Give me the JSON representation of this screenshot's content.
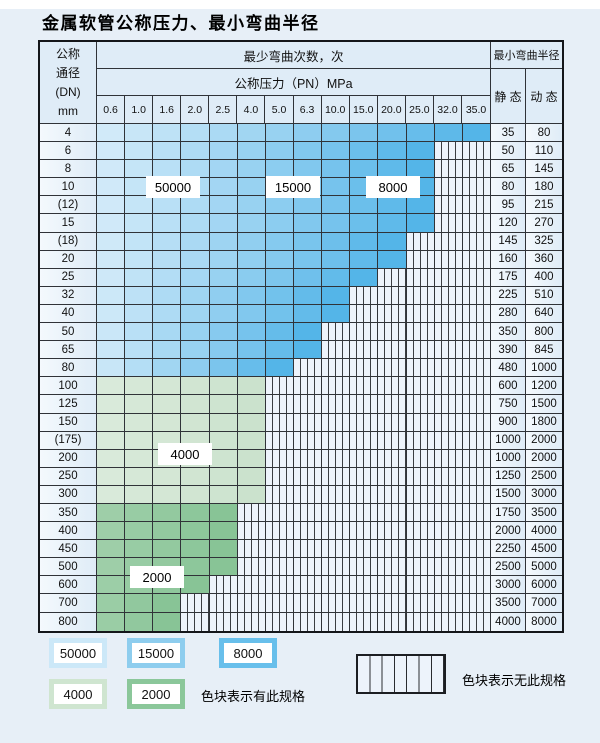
{
  "page": {
    "title": "金属软管公称压力、最小弯曲半径"
  },
  "table": {
    "header": {
      "nominal_line1": "公称",
      "nominal_line2": "通径",
      "nominal_line3": "(DN)",
      "nominal_line4": "mm",
      "bend_cycles": "最少弯曲次数，次",
      "pressure": "公称压力（PN）MPa",
      "radius": "最小弯曲半径",
      "static": "静 态",
      "dynamic": "动 态"
    },
    "pressure_columns": [
      "0.6",
      "1.0",
      "1.6",
      "2.0",
      "2.5",
      "4.0",
      "5.0",
      "6.3",
      "10.0",
      "15.0",
      "20.0",
      "25.0",
      "32.0",
      "35.0"
    ],
    "rows": [
      {
        "dn": "4",
        "colored_until": "35.0",
        "shade": "blue",
        "static": "35",
        "dynamic": "80"
      },
      {
        "dn": "6",
        "colored_until": "25.0",
        "shade": "blue",
        "static": "50",
        "dynamic": "110"
      },
      {
        "dn": "8",
        "colored_until": "25.0",
        "shade": "blue",
        "static": "65",
        "dynamic": "145"
      },
      {
        "dn": "10",
        "colored_until": "25.0",
        "shade": "blue",
        "static": "80",
        "dynamic": "180"
      },
      {
        "dn": "(12)",
        "colored_until": "25.0",
        "shade": "blue",
        "static": "95",
        "dynamic": "215"
      },
      {
        "dn": "15",
        "colored_until": "25.0",
        "shade": "blue",
        "static": "120",
        "dynamic": "270"
      },
      {
        "dn": "(18)",
        "colored_until": "20.0",
        "shade": "blue",
        "static": "145",
        "dynamic": "325"
      },
      {
        "dn": "20",
        "colored_until": "20.0",
        "shade": "blue",
        "static": "160",
        "dynamic": "360"
      },
      {
        "dn": "25",
        "colored_until": "15.0",
        "shade": "blue",
        "static": "175",
        "dynamic": "400"
      },
      {
        "dn": "32",
        "colored_until": "10.0",
        "shade": "blue",
        "static": "225",
        "dynamic": "510"
      },
      {
        "dn": "40",
        "colored_until": "10.0",
        "shade": "blue",
        "static": "280",
        "dynamic": "640"
      },
      {
        "dn": "50",
        "colored_until": "6.3",
        "shade": "blue",
        "static": "350",
        "dynamic": "800"
      },
      {
        "dn": "65",
        "colored_until": "6.3",
        "shade": "blue",
        "static": "390",
        "dynamic": "845"
      },
      {
        "dn": "80",
        "colored_until": "5.0",
        "shade": "blue",
        "static": "480",
        "dynamic": "1000"
      },
      {
        "dn": "100",
        "colored_until": "4.0",
        "shade": "green_light",
        "static": "600",
        "dynamic": "1200"
      },
      {
        "dn": "125",
        "colored_until": "4.0",
        "shade": "green_light",
        "static": "750",
        "dynamic": "1500"
      },
      {
        "dn": "150",
        "colored_until": "4.0",
        "shade": "green_light",
        "static": "900",
        "dynamic": "1800"
      },
      {
        "dn": "(175)",
        "colored_until": "4.0",
        "shade": "green_light",
        "static": "1000",
        "dynamic": "2000"
      },
      {
        "dn": "200",
        "colored_until": "4.0",
        "shade": "green_light",
        "static": "1000",
        "dynamic": "2000"
      },
      {
        "dn": "250",
        "colored_until": "4.0",
        "shade": "green_light",
        "static": "1250",
        "dynamic": "2500"
      },
      {
        "dn": "300",
        "colored_until": "4.0",
        "shade": "green_light",
        "static": "1500",
        "dynamic": "3000"
      },
      {
        "dn": "350",
        "colored_until": "2.5",
        "shade": "green_dark",
        "static": "1750",
        "dynamic": "3500"
      },
      {
        "dn": "400",
        "colored_until": "2.5",
        "shade": "green_dark",
        "static": "2000",
        "dynamic": "4000"
      },
      {
        "dn": "450",
        "colored_until": "2.5",
        "shade": "green_dark",
        "static": "2250",
        "dynamic": "4500"
      },
      {
        "dn": "500",
        "colored_until": "2.5",
        "shade": "green_dark",
        "static": "2500",
        "dynamic": "5000"
      },
      {
        "dn": "600",
        "colored_until": "2.0",
        "shade": "green_dark",
        "static": "3000",
        "dynamic": "6000"
      },
      {
        "dn": "700",
        "colored_until": "1.6",
        "shade": "green_dark",
        "static": "3500",
        "dynamic": "7000"
      },
      {
        "dn": "800",
        "colored_until": "1.6",
        "shade": "green_dark",
        "static": "4000",
        "dynamic": "8000"
      }
    ]
  },
  "region_labels": {
    "r50000": "50000",
    "r15000": "15000",
    "r8000": "8000",
    "r4000": "4000",
    "r2000": "2000"
  },
  "legend": {
    "items": [
      {
        "value": "50000",
        "color": "#cce8f8"
      },
      {
        "value": "15000",
        "color": "#8ecdee"
      },
      {
        "value": "8000",
        "color": "#68bfeb"
      },
      {
        "value": "4000",
        "color": "#cfe5d0"
      },
      {
        "value": "2000",
        "color": "#8bc79a"
      }
    ],
    "has_spec_label": "色块表示有此规格",
    "no_spec_label": "色块表示无此规格"
  },
  "colors": {
    "blue_start": "#dbeefa",
    "blue_end": "#54b5e8",
    "green_light_start": "#dcebdc",
    "green_light_end": "#cbe2cd",
    "green_dark_start": "#a3d1ad",
    "green_dark_end": "#88c496",
    "stripe_bg": "#edf3fb",
    "stripe_line": "#3a3d42",
    "grid": "#303338",
    "outer_border": "#14161a",
    "header_bg": "#dfecf7",
    "side_cell_start": "#f4f9fd",
    "side_cell_end": "#dfecf7",
    "page_bg": "#e7eff7"
  }
}
